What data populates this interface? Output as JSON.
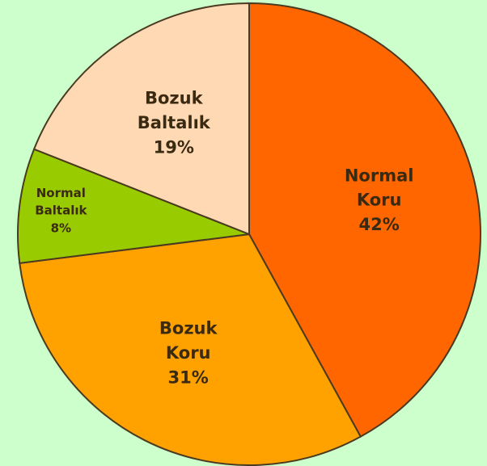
{
  "chart_data": {
    "type": "pie",
    "categories": [
      "Normal Koru",
      "Bozuk Koru",
      "Normal Baltalık",
      "Bozuk Baltalık"
    ],
    "values": [
      42,
      31,
      8,
      19
    ],
    "value_labels": [
      "42%",
      "31%",
      "8%",
      "19%"
    ],
    "colors": [
      "#ff6600",
      "#ffa200",
      "#99cc00",
      "#ffd9b3"
    ]
  }
}
